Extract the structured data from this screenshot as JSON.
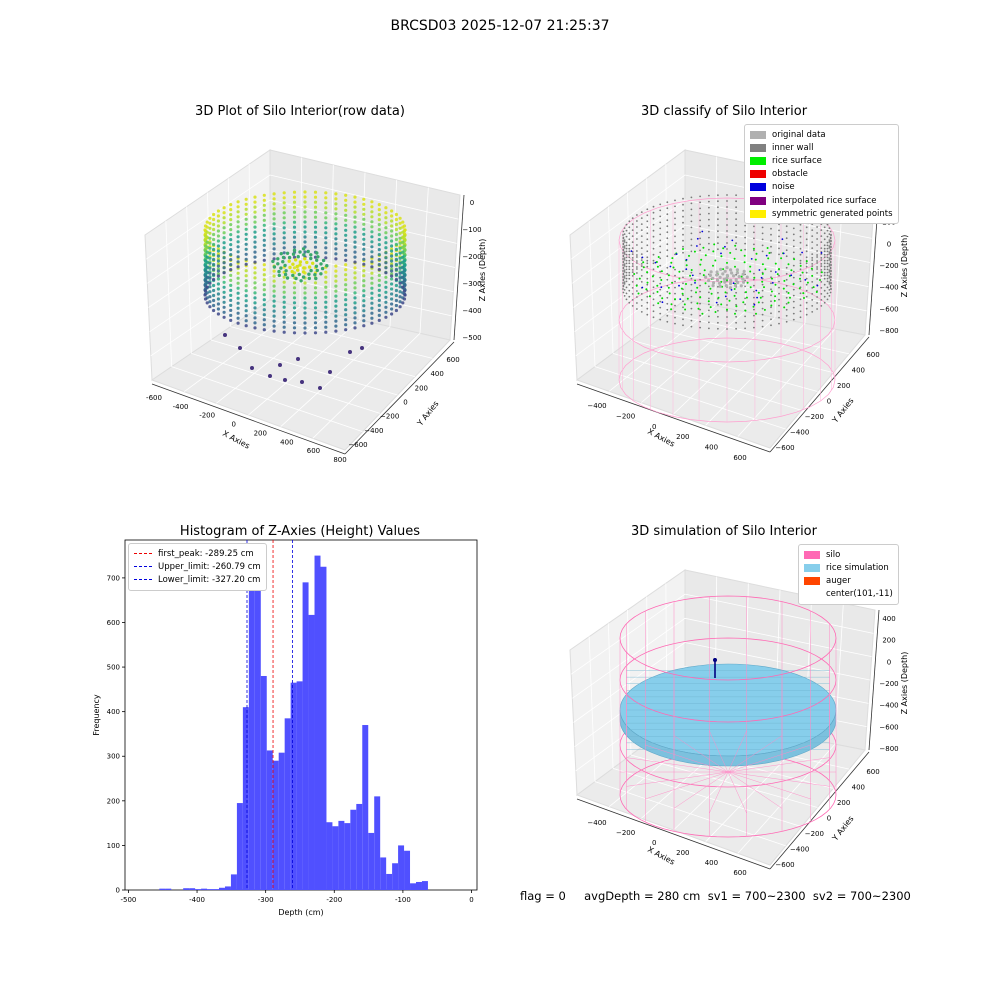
{
  "suptitle": "BRCSD03 2025-12-07 21:25:37",
  "status_line": "flag = 0     avgDepth = 280 cm  sv1 = 700~2300  sv2 = 700~2300",
  "panels": {
    "raw": {
      "title": "3D Plot of Silo Interior(row data)",
      "xlabel": "X Axies",
      "ylabel": "Y Axies",
      "zlabel": "Z Axies (Depth)",
      "xticks": [
        "-600",
        "-400",
        "-200",
        "0",
        "200",
        "400",
        "600",
        "800"
      ],
      "yticks": [
        "600",
        "400",
        "200",
        "0",
        "−200",
        "−400",
        "−600"
      ],
      "zticks": [
        "0",
        "−100",
        "−200",
        "−300",
        "−400",
        "−500"
      ]
    },
    "classify": {
      "title": "3D classify of Silo Interior",
      "xlabel": "X Axies",
      "ylabel": "Y Axies",
      "zlabel": "Z Axies (Depth)",
      "xticks": [
        "−400",
        "−200",
        "0",
        "200",
        "400",
        "600"
      ],
      "yticks": [
        "600",
        "400",
        "200",
        "0",
        "−200",
        "−400",
        "−600"
      ],
      "zticks": [
        "400",
        "200",
        "0",
        "−200",
        "−400",
        "−600",
        "−800"
      ],
      "legend": [
        {
          "label": "original data",
          "color": "#b0b0b0"
        },
        {
          "label": "inner wall",
          "color": "#808080"
        },
        {
          "label": "rice surface",
          "color": "#00ee00"
        },
        {
          "label": "obstacle",
          "color": "#ee0000"
        },
        {
          "label": "noise",
          "color": "#0000dd"
        },
        {
          "label": "interpolated rice surface",
          "color": "#800080"
        },
        {
          "label": "symmetric generated points",
          "color": "#ffee00"
        }
      ]
    },
    "simulation": {
      "title": "3D simulation of Silo Interior",
      "xlabel": "X Axies",
      "ylabel": "Y Axies",
      "zlabel": "Z Axies (Depth)",
      "xticks": [
        "−400",
        "−200",
        "0",
        "200",
        "400",
        "600"
      ],
      "yticks": [
        "600",
        "400",
        "200",
        "0",
        "−200",
        "−400",
        "−600"
      ],
      "zticks": [
        "400",
        "200",
        "0",
        "−200",
        "−400",
        "−600",
        "−800"
      ],
      "legend": [
        {
          "label": "silo",
          "color": "#ff69b4"
        },
        {
          "label": "rice simulation",
          "color": "#87ceeb"
        },
        {
          "label": "auger",
          "color": "#ff4500"
        },
        {
          "label": "center(101,-11)",
          "color": ""
        }
      ]
    }
  },
  "chart_data": [
    {
      "type": "bar",
      "title": "Histogram of Z-Axies (Height) Values",
      "xlabel": "Depth (cm)",
      "ylabel": "Frequency",
      "bar_color": "#5050ff",
      "xlim": [
        -505,
        8
      ],
      "ylim": [
        0,
        785
      ],
      "xticks": [
        -500,
        -400,
        -300,
        -200,
        -100,
        0
      ],
      "yticks": [
        0,
        100,
        200,
        300,
        400,
        500,
        600,
        700
      ],
      "bin_start": -455,
      "bin_width": 8.7,
      "values": [
        3,
        3,
        0,
        0,
        4,
        4,
        2,
        3,
        2,
        2,
        5,
        8,
        35,
        195,
        410,
        697,
        727,
        480,
        313,
        290,
        308,
        385,
        465,
        468,
        690,
        617,
        750,
        725,
        152,
        143,
        155,
        150,
        180,
        193,
        370,
        128,
        210,
        73,
        36,
        60,
        100,
        88,
        15,
        18,
        20
      ],
      "vlines": [
        {
          "label": "first_peak: -289.25 cm",
          "x": -289.25,
          "color": "#ee0000"
        },
        {
          "label": "Upper_limit: -260.79 cm",
          "x": -260.79,
          "color": "#0000dd"
        },
        {
          "label": "Lower_limit: -327.20 cm",
          "x": -327.2,
          "color": "#0000dd"
        }
      ]
    }
  ]
}
